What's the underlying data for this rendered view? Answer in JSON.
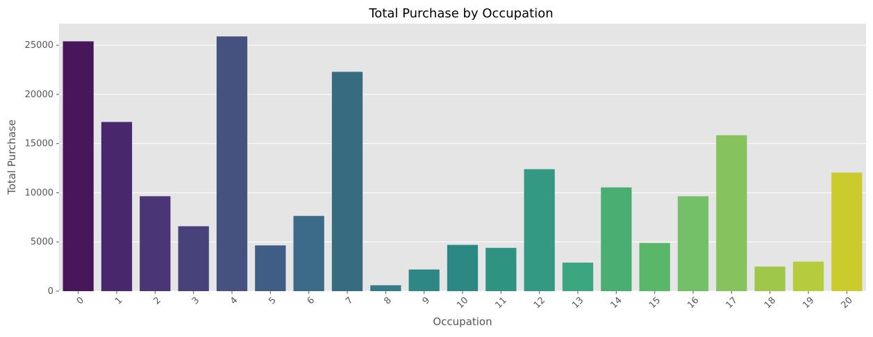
{
  "chart_data": {
    "type": "bar",
    "title": "Total Purchase by Occupation",
    "xlabel": "Occupation",
    "ylabel": "Total Purchase",
    "categories": [
      "0",
      "1",
      "2",
      "3",
      "4",
      "5",
      "6",
      "7",
      "8",
      "9",
      "10",
      "11",
      "12",
      "13",
      "14",
      "15",
      "16",
      "17",
      "18",
      "19",
      "20"
    ],
    "values": [
      25400,
      17200,
      9650,
      6600,
      25900,
      4650,
      7650,
      22300,
      600,
      2200,
      4700,
      4400,
      12400,
      2900,
      10550,
      4900,
      9650,
      15850,
      2500,
      3000,
      12050
    ],
    "ylim": [
      0,
      27200
    ],
    "yticks": [
      0,
      5000,
      10000,
      15000,
      20000,
      25000
    ],
    "grid": true,
    "legend": "none",
    "x_tick_rotation": 45,
    "colors": [
      "#440154",
      "#471466",
      "#482475",
      "#453581",
      "#3f4788",
      "#39558c",
      "#32648e",
      "#2d718e",
      "#287d8e",
      "#238a8d",
      "#1f968b",
      "#20a386",
      "#29af7f",
      "#3cbc75",
      "#56c667",
      "#75d054",
      "#95d840",
      "#bade28",
      "#dde318",
      "#fde725",
      "#c8cc2c"
    ],
    "bar_colors": [
      "#47175a",
      "#48276c",
      "#4a3676",
      "#47437a",
      "#45527f",
      "#405e85",
      "#3b6b89",
      "#376b80",
      "#357a86",
      "#2f8785",
      "#2c8882",
      "#2f9381",
      "#349982",
      "#3ba67f",
      "#4aad72",
      "#5ab76a",
      "#74c068",
      "#86c35d",
      "#9fc84b",
      "#b6cc3c",
      "#cbcb2e"
    ],
    "background_color": "#e5e5e5",
    "grid_color": "#ffffff",
    "text_color": "#555555",
    "title_color": "#000000"
  }
}
